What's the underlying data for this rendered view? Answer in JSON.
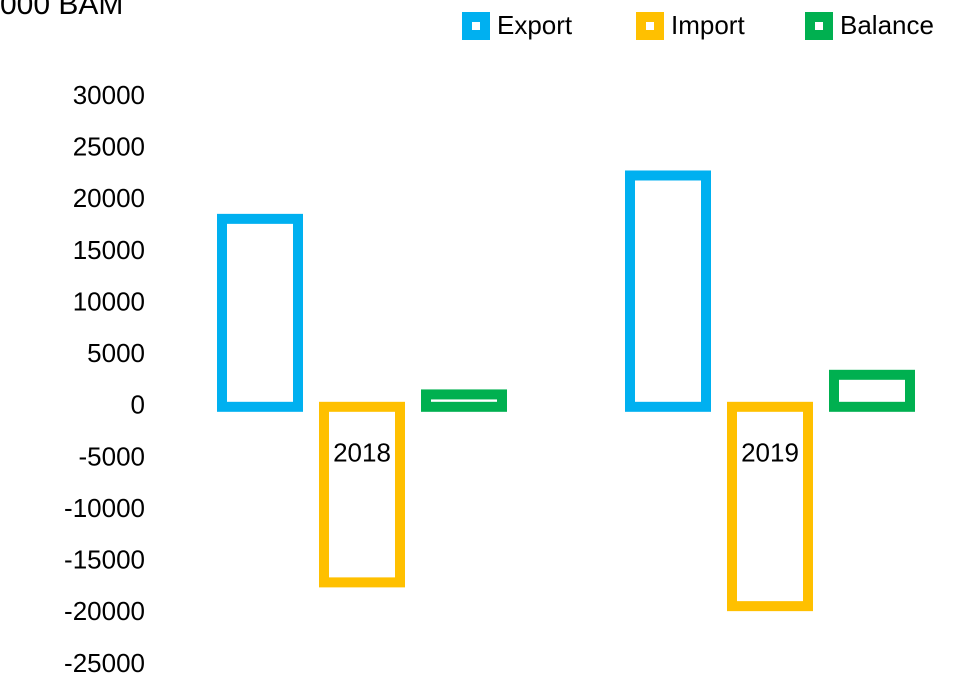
{
  "chart_data": {
    "type": "bar",
    "title": "000 BAM",
    "categories": [
      "2018",
      "2019"
    ],
    "series": [
      {
        "name": "Export",
        "color": "#00b0f0",
        "values": [
          18200,
          22400
        ]
      },
      {
        "name": "Import",
        "color": "#ffc000",
        "values": [
          -17000,
          -19300
        ]
      },
      {
        "name": "Balance",
        "color": "#00b050",
        "values": [
          1200,
          3100
        ]
      }
    ],
    "ylim": [
      -25000,
      30000
    ],
    "yticks": [
      -25000,
      -20000,
      -15000,
      -10000,
      -5000,
      0,
      5000,
      10000,
      15000,
      20000,
      25000,
      30000
    ],
    "grid": false,
    "legend": "top-right",
    "bar_style": "outline"
  }
}
